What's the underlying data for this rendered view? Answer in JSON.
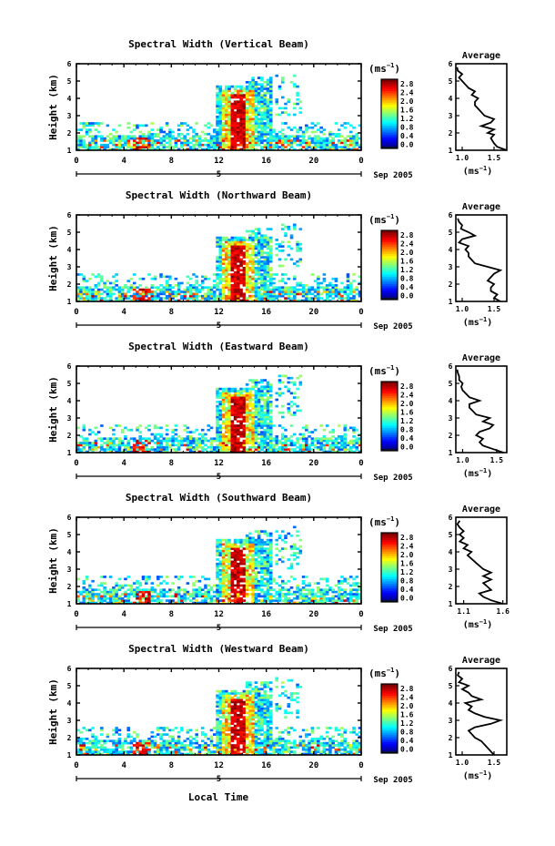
{
  "figure": {
    "xlabel": "Local Time",
    "date_label": "Sep 2005",
    "day_label": "5",
    "unit_label": "(ms",
    "unit_exponent": "−1",
    "avg_title": "Average",
    "ylabel": "Height (km)"
  },
  "chart_data": [
    {
      "type": "heatmap",
      "title": "Spectral Width (Vertical Beam)",
      "ylabel": "Height (km)",
      "x_ticks": [
        "0",
        "4",
        "8",
        "12",
        "16",
        "20",
        "0"
      ],
      "y_ticks": [
        "1",
        "2",
        "3",
        "4",
        "5",
        "6"
      ],
      "xlim": [
        0,
        24
      ],
      "ylim": [
        1,
        6
      ],
      "colorbar_ticks": [
        "0.0",
        "0.4",
        "0.8",
        "1.2",
        "1.6",
        "2.0",
        "2.4",
        "2.8"
      ],
      "avg_ticks": [
        "1.0",
        "1.5"
      ],
      "avg_xlim": [
        0.9,
        1.7
      ],
      "avg_profile": [
        [
          1.0,
          1.7
        ],
        [
          1.2,
          1.55
        ],
        [
          1.4,
          1.5
        ],
        [
          1.7,
          1.45
        ],
        [
          1.9,
          1.5
        ],
        [
          2.0,
          1.4
        ],
        [
          2.2,
          1.5
        ],
        [
          2.4,
          1.3
        ],
        [
          2.6,
          1.45
        ],
        [
          2.8,
          1.5
        ],
        [
          3.0,
          1.35
        ],
        [
          3.2,
          1.3
        ],
        [
          3.4,
          1.25
        ],
        [
          3.6,
          1.2
        ],
        [
          3.8,
          1.2
        ],
        [
          4.0,
          1.25
        ],
        [
          4.2,
          1.15
        ],
        [
          4.4,
          1.2
        ],
        [
          4.6,
          1.1
        ],
        [
          4.8,
          1.05
        ],
        [
          5.0,
          1.0
        ],
        [
          5.2,
          0.95
        ],
        [
          5.4,
          1.0
        ],
        [
          5.6,
          0.93
        ],
        [
          5.8,
          0.92
        ]
      ]
    },
    {
      "type": "heatmap",
      "title": "Spectral Width (Northward Beam)",
      "ylabel": "Height (km)",
      "x_ticks": [
        "0",
        "4",
        "8",
        "12",
        "16",
        "20",
        "0"
      ],
      "y_ticks": [
        "1",
        "2",
        "3",
        "4",
        "5",
        "6"
      ],
      "xlim": [
        0,
        24
      ],
      "ylim": [
        1,
        6
      ],
      "colorbar_ticks": [
        "0.0",
        "0.4",
        "0.8",
        "1.2",
        "1.6",
        "2.0",
        "2.4",
        "2.8"
      ],
      "avg_ticks": [
        "1.0",
        "1.5"
      ],
      "avg_xlim": [
        0.9,
        1.7
      ],
      "avg_profile": [
        [
          1.0,
          1.6
        ],
        [
          1.2,
          1.5
        ],
        [
          1.4,
          1.55
        ],
        [
          1.6,
          1.45
        ],
        [
          1.8,
          1.45
        ],
        [
          2.0,
          1.5
        ],
        [
          2.2,
          1.4
        ],
        [
          2.4,
          1.45
        ],
        [
          2.6,
          1.5
        ],
        [
          2.8,
          1.6
        ],
        [
          3.0,
          1.4
        ],
        [
          3.2,
          1.2
        ],
        [
          3.4,
          1.15
        ],
        [
          3.6,
          1.1
        ],
        [
          3.8,
          1.1
        ],
        [
          4.0,
          1.05
        ],
        [
          4.2,
          1.1
        ],
        [
          4.4,
          0.95
        ],
        [
          4.6,
          1.0
        ],
        [
          4.8,
          1.2
        ],
        [
          5.0,
          1.1
        ],
        [
          5.2,
          0.98
        ],
        [
          5.4,
          1.0
        ],
        [
          5.6,
          0.95
        ],
        [
          5.8,
          0.93
        ]
      ]
    },
    {
      "type": "heatmap",
      "title": "Spectral Width (Eastward Beam)",
      "ylabel": "Height (km)",
      "x_ticks": [
        "0",
        "4",
        "8",
        "12",
        "16",
        "20",
        "0"
      ],
      "y_ticks": [
        "1",
        "2",
        "3",
        "4",
        "5",
        "6"
      ],
      "xlim": [
        0,
        24
      ],
      "ylim": [
        1,
        6
      ],
      "colorbar_ticks": [
        "0.0",
        "0.4",
        "0.8",
        "1.2",
        "1.6",
        "2.0",
        "2.4",
        "2.8"
      ],
      "avg_ticks": [
        "1.0",
        "1.5"
      ],
      "avg_xlim": [
        0.9,
        1.65
      ],
      "avg_profile": [
        [
          1.0,
          1.6
        ],
        [
          1.2,
          1.45
        ],
        [
          1.4,
          1.3
        ],
        [
          1.6,
          1.25
        ],
        [
          1.8,
          1.3
        ],
        [
          2.0,
          1.2
        ],
        [
          2.2,
          1.25
        ],
        [
          2.4,
          1.4
        ],
        [
          2.6,
          1.45
        ],
        [
          2.8,
          1.3
        ],
        [
          3.0,
          1.4
        ],
        [
          3.2,
          1.2
        ],
        [
          3.4,
          1.15
        ],
        [
          3.6,
          1.1
        ],
        [
          3.8,
          1.1
        ],
        [
          4.0,
          1.25
        ],
        [
          4.2,
          1.1
        ],
        [
          4.4,
          1.05
        ],
        [
          4.6,
          1.0
        ],
        [
          4.8,
          0.98
        ],
        [
          5.0,
          1.0
        ],
        [
          5.2,
          0.95
        ],
        [
          5.4,
          0.95
        ],
        [
          5.6,
          0.93
        ],
        [
          5.8,
          0.92
        ]
      ]
    },
    {
      "type": "heatmap",
      "title": "Spectral Width (Southward Beam)",
      "ylabel": "Height (km)",
      "x_ticks": [
        "0",
        "4",
        "8",
        "12",
        "16",
        "20",
        "0"
      ],
      "y_ticks": [
        "1",
        "2",
        "3",
        "4",
        "5",
        "6"
      ],
      "xlim": [
        0,
        24
      ],
      "ylim": [
        1,
        6
      ],
      "colorbar_ticks": [
        "0.0",
        "0.4",
        "0.8",
        "1.2",
        "1.6",
        "2.0",
        "2.4",
        "2.8"
      ],
      "avg_ticks": [
        "1.1",
        "1.6"
      ],
      "avg_xlim": [
        1.0,
        1.65
      ],
      "avg_profile": [
        [
          1.0,
          1.6
        ],
        [
          1.2,
          1.45
        ],
        [
          1.4,
          1.35
        ],
        [
          1.6,
          1.3
        ],
        [
          1.8,
          1.45
        ],
        [
          2.0,
          1.4
        ],
        [
          2.2,
          1.35
        ],
        [
          2.4,
          1.45
        ],
        [
          2.6,
          1.35
        ],
        [
          2.8,
          1.45
        ],
        [
          3.0,
          1.35
        ],
        [
          3.2,
          1.3
        ],
        [
          3.4,
          1.25
        ],
        [
          3.6,
          1.2
        ],
        [
          3.8,
          1.15
        ],
        [
          4.0,
          1.2
        ],
        [
          4.2,
          1.1
        ],
        [
          4.4,
          1.15
        ],
        [
          4.6,
          1.05
        ],
        [
          4.8,
          1.1
        ],
        [
          5.0,
          1.05
        ],
        [
          5.2,
          1.1
        ],
        [
          5.4,
          1.05
        ],
        [
          5.6,
          1.02
        ],
        [
          5.8,
          1.05
        ]
      ]
    },
    {
      "type": "heatmap",
      "title": "Spectral Width (Westward Beam)",
      "ylabel": "Height (km)",
      "x_ticks": [
        "0",
        "4",
        "8",
        "12",
        "16",
        "20",
        "0"
      ],
      "y_ticks": [
        "1",
        "2",
        "3",
        "4",
        "5",
        "6"
      ],
      "xlim": [
        0,
        24
      ],
      "ylim": [
        1,
        6
      ],
      "colorbar_ticks": [
        "0.0",
        "0.4",
        "0.8",
        "1.2",
        "1.6",
        "2.0",
        "2.4",
        "2.8"
      ],
      "avg_ticks": [
        "1.0",
        "1.5"
      ],
      "avg_xlim": [
        0.9,
        1.7
      ],
      "avg_profile": [
        [
          1.0,
          1.5
        ],
        [
          1.2,
          1.45
        ],
        [
          1.4,
          1.4
        ],
        [
          1.6,
          1.35
        ],
        [
          1.8,
          1.3
        ],
        [
          2.0,
          1.2
        ],
        [
          2.2,
          1.15
        ],
        [
          2.4,
          1.1
        ],
        [
          2.6,
          1.2
        ],
        [
          2.8,
          1.45
        ],
        [
          3.0,
          1.6
        ],
        [
          3.2,
          1.35
        ],
        [
          3.4,
          1.2
        ],
        [
          3.6,
          1.1
        ],
        [
          3.8,
          1.15
        ],
        [
          4.0,
          1.05
        ],
        [
          4.2,
          1.3
        ],
        [
          4.4,
          1.15
        ],
        [
          4.6,
          1.1
        ],
        [
          4.8,
          1.0
        ],
        [
          5.0,
          1.1
        ],
        [
          5.2,
          0.95
        ],
        [
          5.4,
          1.0
        ],
        [
          5.6,
          0.93
        ],
        [
          5.8,
          0.95
        ]
      ]
    }
  ]
}
